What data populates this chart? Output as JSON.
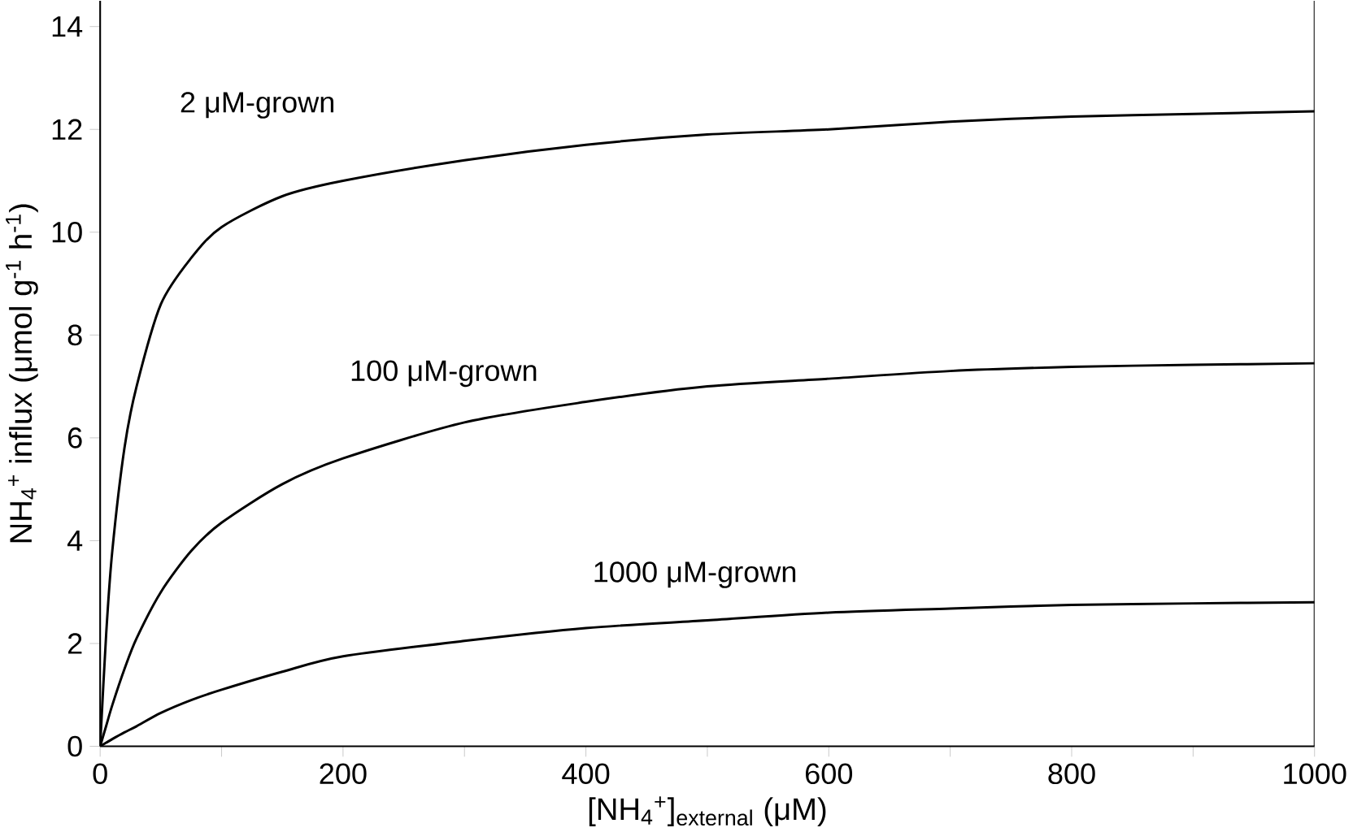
{
  "chart_data": {
    "type": "line",
    "xlabel": "[NH$_{4}$$^{+}$]$_{external}$ (μM)",
    "ylabel": "NH$_{4}$$^{+}$ influx (μmol g$^{-1}$ h$^{-1}$)",
    "x": [
      0,
      5,
      10,
      20,
      30,
      50,
      75,
      100,
      150,
      200,
      300,
      400,
      500,
      600,
      700,
      800,
      900,
      1000
    ],
    "series": [
      {
        "name": "2 μM-grown",
        "color": "#000000",
        "values": [
          0,
          2.2,
          3.8,
          5.8,
          7.0,
          8.6,
          9.5,
          10.1,
          10.7,
          11.0,
          11.4,
          11.7,
          11.9,
          12.0,
          12.15,
          12.25,
          12.3,
          12.35
        ]
      },
      {
        "name": "100 μM-grown",
        "color": "#000000",
        "values": [
          0,
          0.4,
          0.8,
          1.5,
          2.1,
          3.0,
          3.8,
          4.35,
          5.1,
          5.6,
          6.3,
          6.7,
          7.0,
          7.15,
          7.3,
          7.38,
          7.42,
          7.45
        ]
      },
      {
        "name": "1000 μM-grown",
        "color": "#000000",
        "values": [
          0,
          0.07,
          0.14,
          0.27,
          0.39,
          0.65,
          0.9,
          1.1,
          1.45,
          1.75,
          2.05,
          2.3,
          2.45,
          2.6,
          2.68,
          2.75,
          2.78,
          2.8
        ]
      }
    ],
    "xlim": [
      0,
      1000
    ],
    "ylim": [
      0,
      14.5
    ],
    "xticks": [
      0,
      {
        "value": 100,
        "label": null
      },
      200,
      {
        "value": 300,
        "label": null
      },
      400,
      {
        "value": 500,
        "label": null
      },
      600,
      {
        "value": 700,
        "label": null
      },
      800,
      {
        "value": 900,
        "label": null
      },
      1000
    ],
    "yticks": [
      0,
      2,
      4,
      6,
      8,
      10,
      12,
      14
    ],
    "grid": false,
    "legend": false,
    "marker": "none",
    "line_style": "solid"
  }
}
